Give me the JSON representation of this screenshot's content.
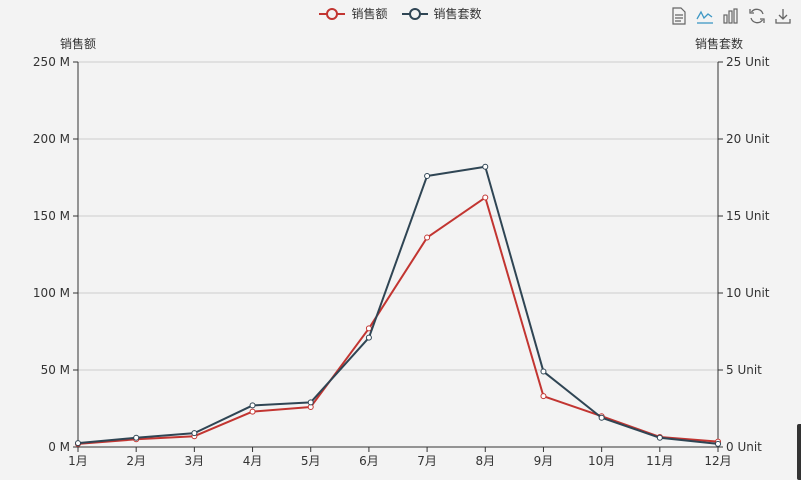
{
  "legend": [
    {
      "name": "销售额",
      "color": "#c23531"
    },
    {
      "name": "销售套数",
      "color": "#2f4554"
    }
  ],
  "toolbox": [
    {
      "name": "data-view-icon"
    },
    {
      "name": "line-chart-icon",
      "active": true
    },
    {
      "name": "bar-chart-icon"
    },
    {
      "name": "restore-icon"
    },
    {
      "name": "save-image-icon"
    }
  ],
  "chart_data": {
    "type": "line",
    "categories": [
      "1月",
      "2月",
      "3月",
      "4月",
      "5月",
      "6月",
      "7月",
      "8月",
      "9月",
      "10月",
      "11月",
      "12月"
    ],
    "series": [
      {
        "name": "销售额",
        "axis": "left",
        "color": "#c23531",
        "values": [
          2,
          5,
          7,
          23,
          26,
          77,
          136,
          162,
          33,
          20,
          6.5,
          3.5
        ]
      },
      {
        "name": "销售套数",
        "axis": "right",
        "color": "#2f4554",
        "values": [
          0.25,
          0.6,
          0.9,
          2.7,
          2.9,
          7.1,
          17.6,
          18.2,
          4.9,
          1.9,
          0.6,
          0.2
        ]
      }
    ],
    "y_left": {
      "label": "销售额",
      "min": 0,
      "max": 250,
      "ticks": [
        0,
        50,
        100,
        150,
        200,
        250
      ],
      "suffix": " M"
    },
    "y_right": {
      "label": "销售套数",
      "min": 0,
      "max": 25,
      "ticks": [
        0,
        5,
        10,
        15,
        20,
        25
      ],
      "suffix": " Unit"
    },
    "grid": true,
    "legend_position": "top-center"
  }
}
